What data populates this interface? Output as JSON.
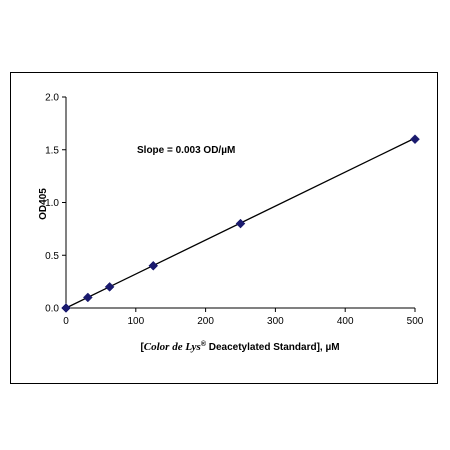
{
  "chart_data": {
    "type": "scatter",
    "title": "",
    "xlabel": {
      "open": "[",
      "brand": "Color de Lys",
      "reg": "®",
      "rest": " Deacetylated Standard], µM"
    },
    "ylabel": "OD405",
    "xlim": [
      0,
      500
    ],
    "ylim": [
      0,
      2.0
    ],
    "x_ticks": [
      "0",
      "100",
      "200",
      "300",
      "400",
      "500"
    ],
    "y_ticks": [
      "0.0",
      "0.5",
      "1.0",
      "1.5",
      "2.0"
    ],
    "series": [
      {
        "x": [
          0,
          31.25,
          62.5,
          125,
          250,
          500
        ],
        "y": [
          0.0,
          0.1,
          0.2,
          0.4,
          0.8,
          1.6
        ],
        "marker": "diamond",
        "color": "#1a1a6e"
      }
    ],
    "trendline": {
      "x": [
        0,
        500
      ],
      "y": [
        0.0,
        1.61
      ],
      "color": "#000000"
    },
    "annotation": "Slope = 0.003 OD/µM",
    "grid": false,
    "legend": "none"
  }
}
